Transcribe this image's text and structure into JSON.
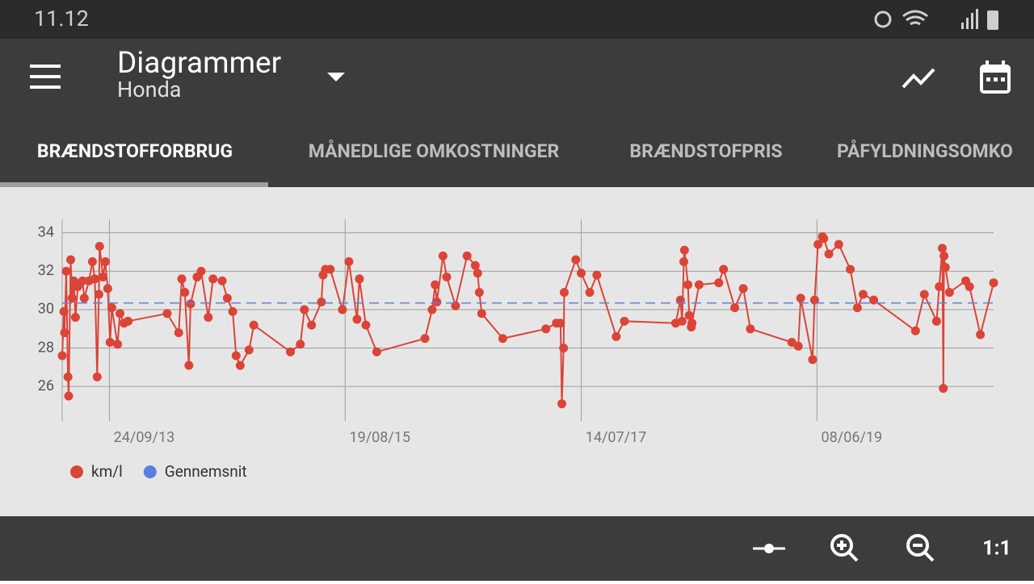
{
  "status_bar": {
    "time": "11.12"
  },
  "app_bar": {
    "title": "Diagrammer",
    "subtitle": "Honda"
  },
  "tabs": [
    "BRÆNDSTOFFORBRUG",
    "MÅNEDLIGE OMKOSTNINGER",
    "BRÆNDSTOFPRIS",
    "PÅFYLDNINGSOMKO"
  ],
  "toolbar": {
    "reset_zoom": "1:1"
  },
  "chart_data": {
    "type": "line",
    "grid": true,
    "xlim": [
      "2013-05-08",
      "2020-11-09"
    ],
    "xticks": [
      {
        "value": "2013-09-24",
        "label": "24/09/13"
      },
      {
        "value": "2015-08-19",
        "label": "19/08/15"
      },
      {
        "value": "2017-07-14",
        "label": "14/07/17"
      },
      {
        "value": "2019-06-08",
        "label": "08/06/19"
      }
    ],
    "ylim": [
      24.2,
      34.7
    ],
    "yticks": [
      26,
      28,
      30,
      32,
      34
    ],
    "legend": "bottom-left",
    "series": [
      {
        "name": "km/l",
        "color": "#db4437",
        "x": [
          "2013-05-08",
          "2013-05-13",
          "2013-05-15",
          "2013-05-20",
          "2013-05-25",
          "2013-05-27",
          "2013-06-02",
          "2013-06-06",
          "2013-06-11",
          "2013-06-16",
          "2013-06-23",
          "2013-07-07",
          "2013-07-12",
          "2013-07-26",
          "2013-08-05",
          "2013-08-12",
          "2013-08-19",
          "2013-08-24",
          "2013-08-26",
          "2013-09-05",
          "2013-09-12",
          "2013-09-19",
          "2013-09-26",
          "2013-10-01",
          "2013-10-18",
          "2013-10-25",
          "2013-11-06",
          "2013-11-18",
          "2014-03-13",
          "2014-04-16",
          "2014-04-25",
          "2014-05-04",
          "2014-05-16",
          "2014-05-21",
          "2014-06-09",
          "2014-06-21",
          "2014-07-12",
          "2014-07-26",
          "2014-08-22",
          "2014-09-06",
          "2014-09-22",
          "2014-10-02",
          "2014-10-14",
          "2014-11-09",
          "2014-11-23",
          "2015-03-11",
          "2015-04-09",
          "2015-04-21",
          "2015-05-12",
          "2015-06-10",
          "2015-06-15",
          "2015-06-22",
          "2015-07-06",
          "2015-08-11",
          "2015-08-30",
          "2015-09-23",
          "2015-09-30",
          "2015-10-19",
          "2015-11-20",
          "2016-04-10",
          "2016-05-01",
          "2016-05-10",
          "2016-05-15",
          "2016-06-02",
          "2016-06-13",
          "2016-07-09",
          "2016-08-12",
          "2016-09-05",
          "2016-09-12",
          "2016-09-17",
          "2016-09-24",
          "2016-11-25",
          "2017-04-01",
          "2017-05-02",
          "2017-05-14",
          "2017-05-18",
          "2017-05-23",
          "2017-05-25",
          "2017-06-28",
          "2017-07-14",
          "2017-08-08",
          "2017-08-29",
          "2017-10-25",
          "2017-11-18",
          "2018-04-18",
          "2018-05-02",
          "2018-05-07",
          "2018-05-12",
          "2018-05-14",
          "2018-05-24",
          "2018-05-28",
          "2018-06-03",
          "2018-06-05",
          "2018-06-26",
          "2018-08-23",
          "2018-09-06",
          "2018-10-09",
          "2018-11-03",
          "2018-11-24",
          "2019-03-26",
          "2019-04-14",
          "2019-04-21",
          "2019-05-26",
          "2019-06-01",
          "2019-06-11",
          "2019-06-24",
          "2019-06-28",
          "2019-07-13",
          "2019-08-11",
          "2019-09-14",
          "2019-10-05",
          "2019-10-22",
          "2019-11-22",
          "2020-03-24",
          "2020-04-19",
          "2020-05-25",
          "2020-06-02",
          "2020-06-11",
          "2020-06-14",
          "2020-06-16",
          "2020-06-20",
          "2020-07-02",
          "2020-08-19",
          "2020-08-30",
          "2020-10-01",
          "2020-11-09"
        ],
        "values": [
          27.6,
          29.9,
          28.8,
          32.0,
          26.5,
          25.5,
          32.6,
          30.6,
          31.5,
          29.6,
          31.2,
          31.5,
          30.6,
          31.5,
          32.5,
          31.6,
          26.5,
          30.8,
          33.3,
          31.7,
          32.5,
          31.1,
          28.3,
          30.1,
          28.2,
          29.8,
          29.3,
          29.4,
          29.8,
          28.8,
          31.6,
          30.9,
          27.1,
          30.3,
          31.7,
          32.0,
          29.6,
          31.6,
          31.5,
          30.6,
          29.9,
          27.6,
          27.1,
          27.9,
          29.2,
          27.8,
          28.2,
          30.0,
          29.2,
          30.4,
          31.8,
          32.1,
          32.1,
          30.0,
          32.5,
          29.5,
          31.6,
          29.2,
          27.8,
          28.5,
          30.0,
          31.3,
          30.4,
          32.8,
          31.7,
          30.2,
          32.8,
          32.3,
          31.9,
          30.9,
          29.8,
          28.5,
          29.0,
          29.3,
          29.3,
          25.1,
          28.0,
          30.9,
          32.6,
          31.9,
          30.9,
          31.8,
          28.6,
          29.4,
          29.3,
          30.5,
          29.4,
          32.5,
          33.1,
          31.3,
          29.7,
          29.1,
          29.3,
          31.3,
          31.4,
          32.1,
          30.1,
          31.1,
          29.0,
          28.3,
          28.1,
          30.6,
          27.4,
          30.5,
          33.4,
          33.8,
          33.7,
          32.9,
          33.4,
          32.1,
          30.1,
          30.8,
          30.5,
          28.9,
          30.8,
          29.4,
          31.2,
          33.2,
          25.9,
          32.8,
          32.2,
          30.9,
          31.5,
          31.2,
          28.7,
          31.4
        ]
      },
      {
        "name": "Gennemsnit",
        "color": "#5b7fe0",
        "dashed": true,
        "x": [
          "2013-05-08",
          "2020-11-09"
        ],
        "values": [
          30.35,
          30.35
        ]
      }
    ]
  }
}
